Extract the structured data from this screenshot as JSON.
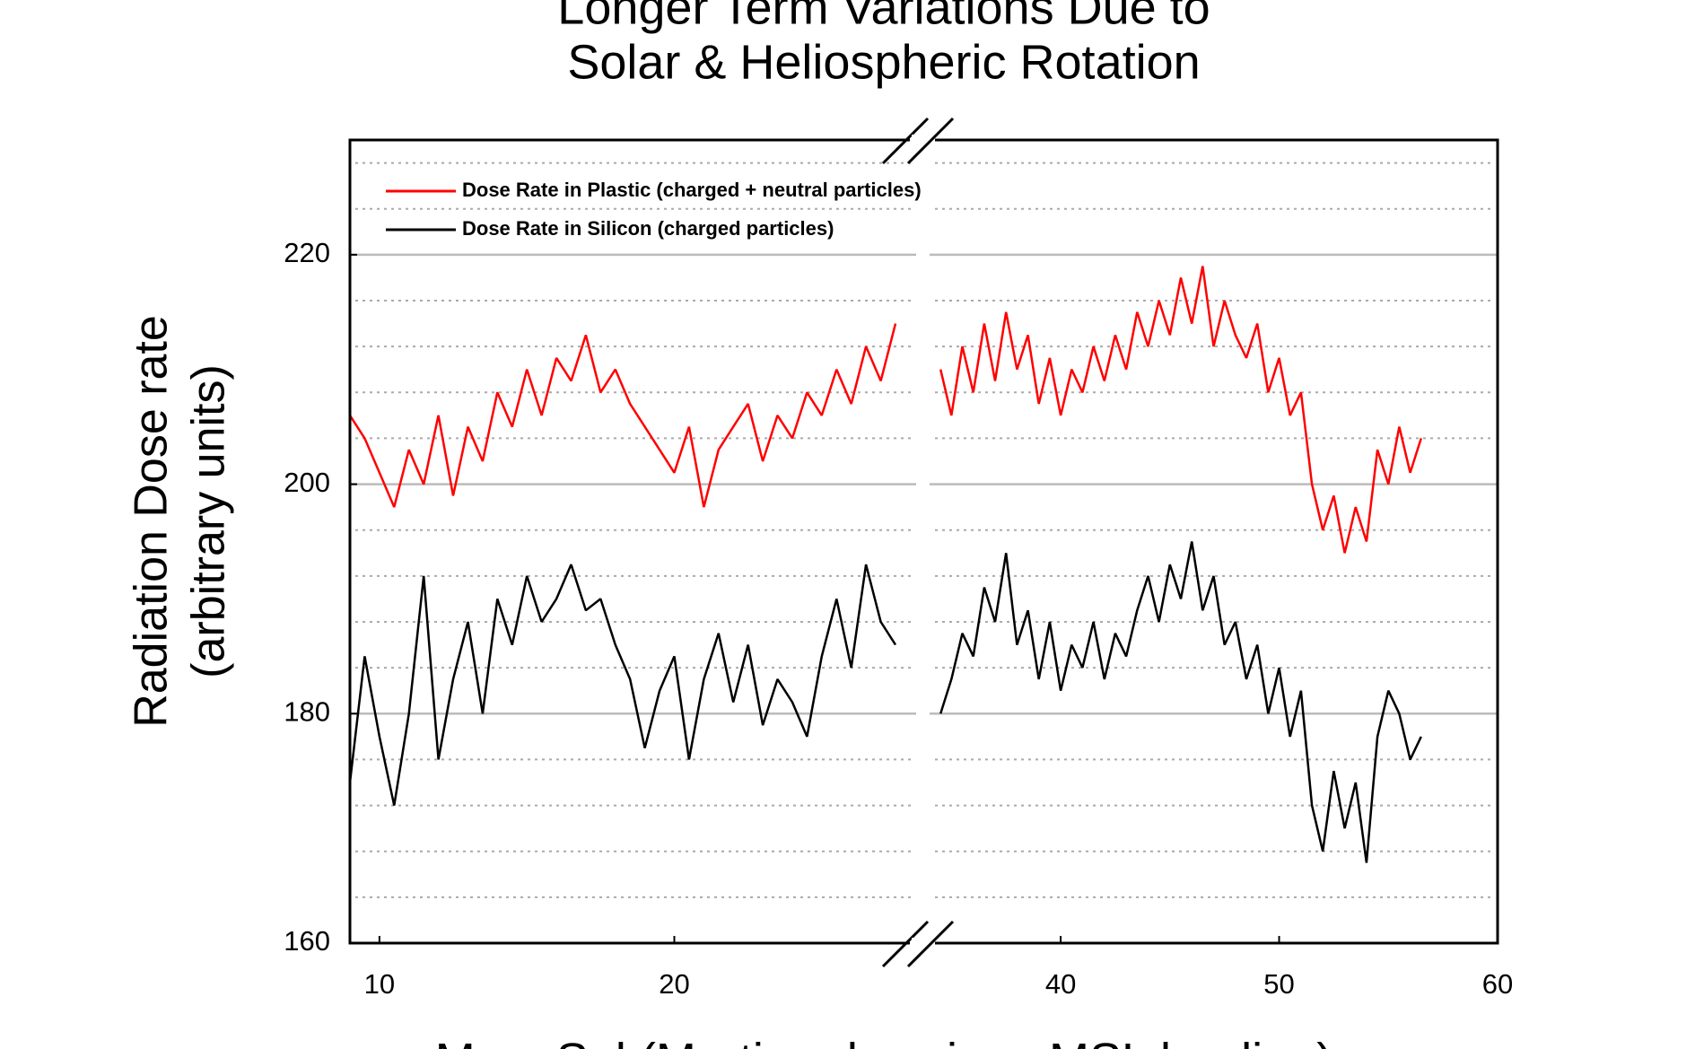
{
  "chart_data": {
    "type": "line",
    "title": [
      "Longer Term Variations Due to",
      "Solar & Heliospheric Rotation"
    ],
    "y_label": [
      "Radiation Dose rate",
      "(arbitrary units)"
    ],
    "x_label": "Mars Sol (Martian day since MSL landing)",
    "ylim": [
      160,
      230
    ],
    "yticks": [
      160,
      180,
      200,
      220
    ],
    "y_minor_ticks": [
      164,
      168,
      172,
      176,
      184,
      188,
      192,
      196,
      204,
      208,
      212,
      216,
      224,
      228
    ],
    "grid": true,
    "legend": "upper left",
    "panels": [
      {
        "xlim": [
          9,
          28.2
        ],
        "xticks": [
          10,
          20
        ]
      },
      {
        "xlim": [
          34,
          60
        ],
        "xticks": [
          40,
          50,
          60
        ]
      }
    ],
    "x": [
      9,
      9.5,
      10,
      10.5,
      11,
      11.5,
      12,
      12.5,
      13,
      13.5,
      14,
      14.5,
      15,
      15.5,
      16,
      16.5,
      17,
      17.5,
      18,
      18.5,
      19,
      19.5,
      20,
      20.5,
      21,
      21.5,
      22,
      22.5,
      23,
      23.5,
      24,
      24.5,
      25,
      25.5,
      26,
      26.5,
      27,
      27.5,
      34.5,
      35,
      35.5,
      36,
      36.5,
      37,
      37.5,
      38,
      38.5,
      39,
      39.5,
      40,
      40.5,
      41,
      41.5,
      42,
      42.5,
      43,
      43.5,
      44,
      44.5,
      45,
      45.5,
      46,
      46.5,
      47,
      47.5,
      48,
      48.5,
      49,
      49.5,
      50,
      50.5,
      51,
      51.5,
      52,
      52.5,
      53,
      53.5,
      54,
      54.5,
      55,
      55.5,
      56,
      56.5
    ],
    "series": [
      {
        "name": "Dose Rate in Plastic (charged + neutral particles)",
        "color": "#ff0000",
        "values": [
          206,
          204,
          201,
          198,
          203,
          200,
          206,
          199,
          205,
          202,
          208,
          205,
          210,
          206,
          211,
          209,
          213,
          208,
          210,
          207,
          205,
          203,
          201,
          205,
          198,
          203,
          205,
          207,
          202,
          206,
          204,
          208,
          206,
          210,
          207,
          212,
          209,
          214,
          210,
          206,
          212,
          208,
          214,
          209,
          215,
          210,
          213,
          207,
          211,
          206,
          210,
          208,
          212,
          209,
          213,
          210,
          215,
          212,
          216,
          213,
          218,
          214,
          219,
          212,
          216,
          213,
          211,
          214,
          208,
          211,
          206,
          208,
          200,
          196,
          199,
          194,
          198,
          195,
          203,
          200,
          205,
          201,
          204
        ]
      },
      {
        "name": "Dose Rate in Silicon (charged particles)",
        "color": "#000000",
        "values": [
          174,
          185,
          178,
          172,
          180,
          192,
          176,
          183,
          188,
          180,
          190,
          186,
          192,
          188,
          190,
          193,
          189,
          190,
          186,
          183,
          177,
          182,
          185,
          176,
          183,
          187,
          181,
          186,
          179,
          183,
          181,
          178,
          185,
          190,
          184,
          193,
          188,
          186,
          180,
          183,
          187,
          185,
          191,
          188,
          194,
          186,
          189,
          183,
          188,
          182,
          186,
          184,
          188,
          183,
          187,
          185,
          189,
          192,
          188,
          193,
          190,
          195,
          189,
          192,
          186,
          188,
          183,
          186,
          180,
          184,
          178,
          182,
          172,
          168,
          175,
          170,
          174,
          167,
          178,
          182,
          180,
          176,
          178
        ]
      }
    ]
  }
}
